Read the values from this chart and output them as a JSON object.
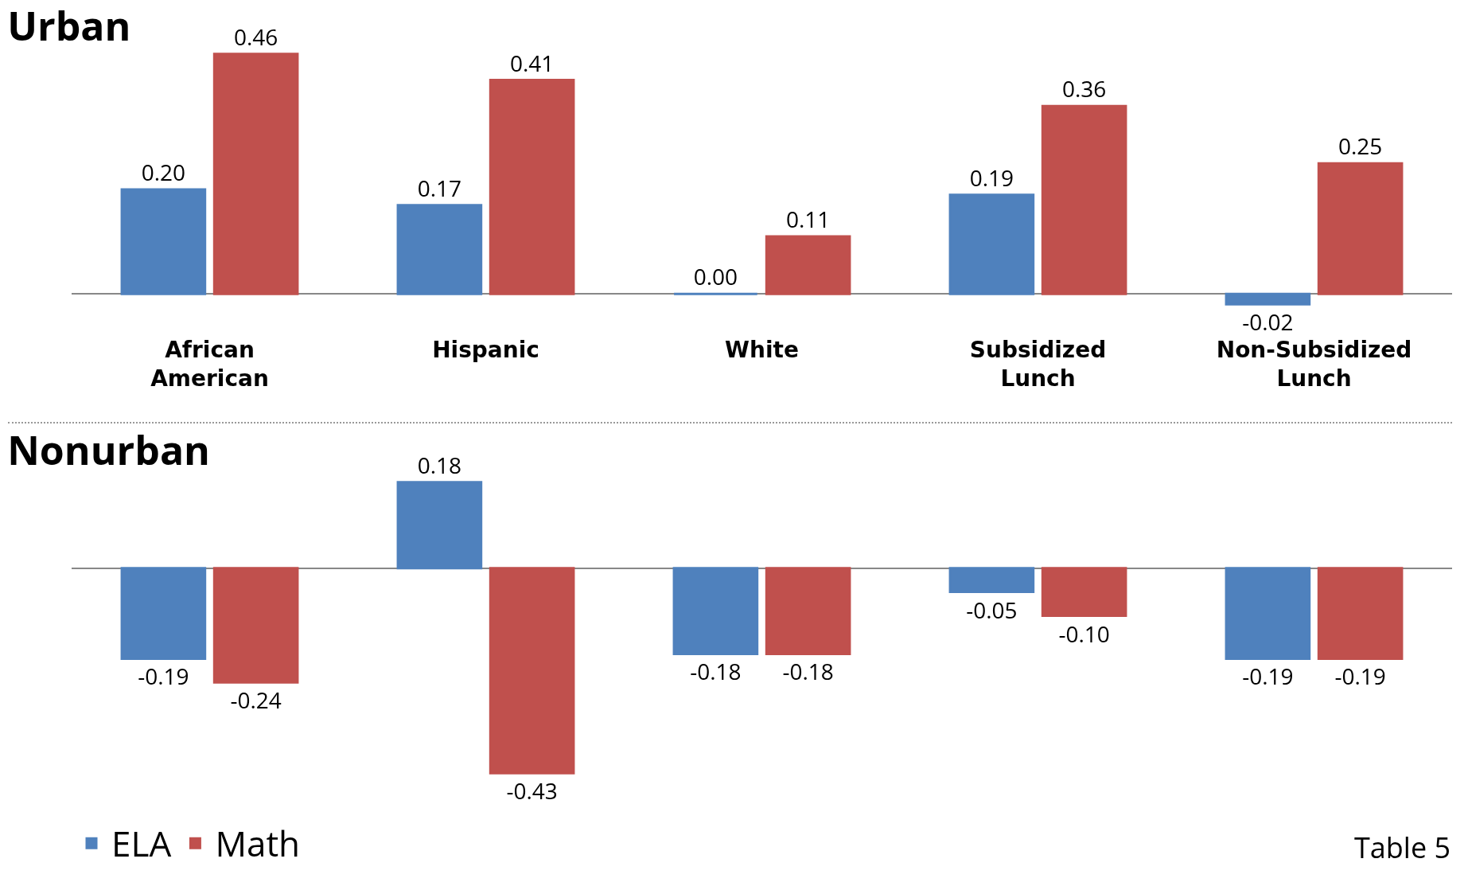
{
  "chart_data": [
    {
      "type": "bar",
      "title": "Urban",
      "categories": [
        "African American",
        "Hispanic",
        "White",
        "Subsidized Lunch",
        "Non-Subsidized Lunch"
      ],
      "legend": false,
      "series": [
        {
          "color": "#4f81bd",
          "values": [
            0.2,
            0.17,
            0.0,
            0.19,
            -0.02
          ],
          "value_labels": [
            "0.20",
            "0.17",
            "0.00",
            "0.19",
            "-0.02"
          ]
        },
        {
          "color": "#c0504d",
          "values": [
            0.46,
            0.41,
            0.11,
            0.36,
            0.25
          ],
          "value_labels": [
            "0.46",
            "0.41",
            "0.11",
            "0.36",
            "0.25"
          ]
        }
      ]
    },
    {
      "type": "bar",
      "title": "Nonurban",
      "categories": [
        null,
        null,
        null,
        null,
        null
      ],
      "tick_labels": false,
      "legend": "bottom left",
      "annotations": [
        "Table 5"
      ],
      "series": [
        {
          "name": "ELA",
          "color": "#4f81bd",
          "values": [
            -0.19,
            0.18,
            -0.18,
            -0.05,
            -0.19
          ],
          "value_labels": [
            "-0.19",
            "0.18",
            "-0.18",
            "-0.05",
            "-0.19"
          ]
        },
        {
          "name": "Math",
          "color": "#c0504d",
          "values": [
            -0.24,
            -0.43,
            -0.18,
            -0.1,
            -0.19
          ],
          "value_labels": [
            "-0.24",
            "-0.43",
            "-0.18",
            "-0.10",
            "-0.19"
          ]
        }
      ]
    }
  ]
}
